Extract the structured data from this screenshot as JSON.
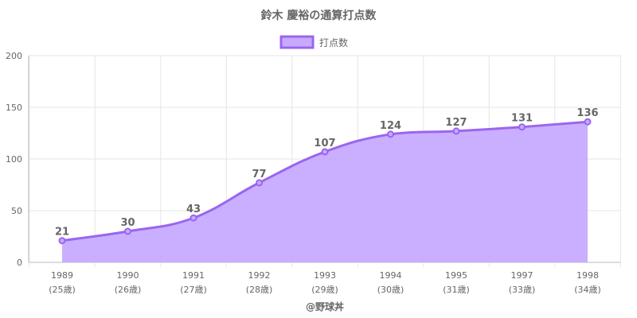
{
  "chart_data": {
    "type": "area",
    "title": "鈴木 慶裕の通算打点数",
    "legend": {
      "label": "打点数",
      "position": "top"
    },
    "categories": [
      "1989",
      "1990",
      "1991",
      "1992",
      "1993",
      "1994",
      "1995",
      "1997",
      "1998"
    ],
    "category_sublabels": [
      "(25歳)",
      "(26歳)",
      "(27歳)",
      "(28歳)",
      "(29歳)",
      "(30歳)",
      "(31歳)",
      "(33歳)",
      "(34歳)"
    ],
    "series": [
      {
        "name": "打点数",
        "values": [
          21,
          30,
          43,
          77,
          107,
          124,
          127,
          131,
          136
        ]
      }
    ],
    "ylim": [
      0,
      200
    ],
    "yticks": [
      0,
      50,
      100,
      150,
      200
    ],
    "grid": true,
    "colors": {
      "line": "#9966ee",
      "fill": "#c7aaff",
      "grid": "#e6e6e6",
      "axis": "#bbbbbb"
    }
  },
  "footer": {
    "credit": "@野球丼"
  }
}
